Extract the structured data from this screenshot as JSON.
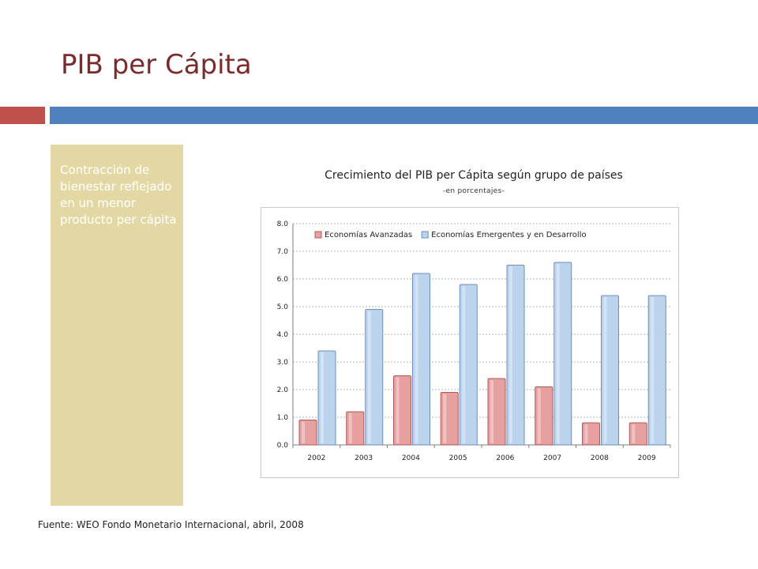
{
  "slide": {
    "title": "PIB per Cápita",
    "side_text": "Contracción de bienestar reflejado en un menor producto per cápita",
    "source": "Fuente: WEO Fondo Monetario Internacional, abril, 2008"
  },
  "colors": {
    "title": "#7b2b2b",
    "accent_left": "#c0504d",
    "accent_right": "#4f81bd",
    "side_panel": "#e3d8a3",
    "series_advanced_fill": "#e6a09f",
    "series_advanced_stroke": "#b05a58",
    "series_emerging_fill": "#bcd3ee",
    "series_emerging_stroke": "#6f8fb8"
  },
  "chart_data": {
    "type": "bar",
    "title": "Crecimiento del PIB per Cápita según grupo de países",
    "subtitle": "-en porcentajes-",
    "categories": [
      "2002",
      "2003",
      "2004",
      "2005",
      "2006",
      "2007",
      "2008",
      "2009"
    ],
    "series": [
      {
        "name": "Economías Avanzadas",
        "values": [
          0.9,
          1.2,
          2.5,
          1.9,
          2.4,
          2.1,
          0.8,
          0.8
        ]
      },
      {
        "name": "Economías Emergentes y en Desarrollo",
        "values": [
          3.4,
          4.9,
          6.2,
          5.8,
          6.5,
          6.6,
          5.4,
          5.4
        ]
      }
    ],
    "ylim": [
      0,
      8
    ],
    "yticks": [
      "0.0",
      "1.0",
      "2.0",
      "3.0",
      "4.0",
      "5.0",
      "6.0",
      "7.0",
      "8.0"
    ],
    "grid": true,
    "legend_position": "top"
  }
}
